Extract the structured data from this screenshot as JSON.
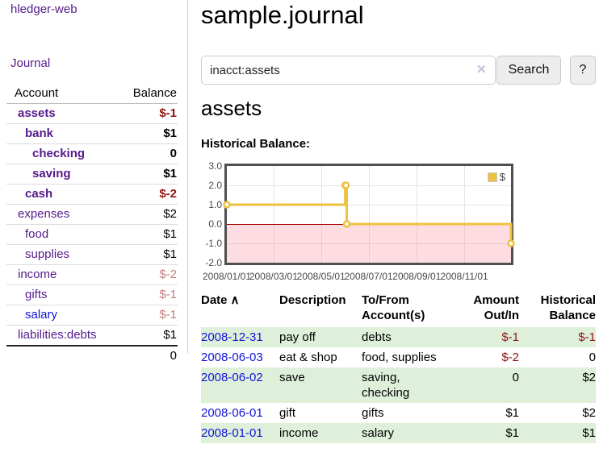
{
  "app": {
    "title": "hledger-web"
  },
  "colors": {
    "accent_purple": "#551a8b",
    "link_blue": "#1414d6",
    "negative_red": "#8f1414",
    "negative_muted": "#c27f7f",
    "row_green": "#def0da",
    "chart_line": "#edc240",
    "zero_line": "#a40000"
  },
  "sidebar": {
    "journal_link": "Journal",
    "accounts_table": {
      "headers": [
        "Account",
        "Balance"
      ],
      "rows": [
        {
          "account": "assets",
          "balance": "$-1",
          "depth": 1,
          "bold": true,
          "balance_color": "negative"
        },
        {
          "account": "bank",
          "balance": "$1",
          "depth": 2,
          "bold": true,
          "balance_color": "normal"
        },
        {
          "account": "checking",
          "balance": "0",
          "depth": 3,
          "bold": true,
          "balance_color": "normal"
        },
        {
          "account": "saving",
          "balance": "$1",
          "depth": 3,
          "bold": true,
          "balance_color": "normal"
        },
        {
          "account": "cash",
          "balance": "$-2",
          "depth": 2,
          "bold": true,
          "balance_color": "negative"
        },
        {
          "account": "expenses",
          "balance": "$2",
          "depth": 1,
          "bold": false,
          "balance_color": "normal"
        },
        {
          "account": "food",
          "balance": "$1",
          "depth": 2,
          "bold": false,
          "balance_color": "normal"
        },
        {
          "account": "supplies",
          "balance": "$1",
          "depth": 2,
          "bold": false,
          "balance_color": "normal"
        },
        {
          "account": "income",
          "balance": "$-2",
          "depth": 1,
          "bold": false,
          "balance_color": "negative-muted"
        },
        {
          "account": "gifts",
          "balance": "$-1",
          "depth": 2,
          "bold": false,
          "balance_color": "negative-muted"
        },
        {
          "account": "salary",
          "balance": "$-1",
          "depth": 2,
          "bold": false,
          "balance_color": "negative-muted",
          "link_color": "blue"
        },
        {
          "account": "liabilities:debts",
          "balance": "$1",
          "depth": 1,
          "bold": false,
          "balance_color": "normal"
        }
      ],
      "total": "0"
    }
  },
  "main": {
    "title": "sample.journal",
    "search": {
      "value": "inacct:assets",
      "clear_icon": "✕",
      "button_label": "Search",
      "help_label": "?"
    },
    "account_heading": "assets",
    "chart_label": "Historical Balance:"
  },
  "chart_data": {
    "type": "line",
    "style": "step",
    "title": "Historical Balance",
    "series": [
      {
        "name": "$",
        "color": "#edc240",
        "points": [
          [
            "2008-01-01",
            1
          ],
          [
            "2008-06-01",
            2
          ],
          [
            "2008-06-02",
            2
          ],
          [
            "2008-06-03",
            0
          ],
          [
            "2008-12-31",
            -1
          ]
        ]
      }
    ],
    "xlim": [
      "2008-01-01",
      "2008-12-31"
    ],
    "ylim": [
      -2,
      3
    ],
    "xticks": [
      "2008/01/01",
      "2008/03/01",
      "2008/05/01",
      "2008/07/01",
      "2008/09/01",
      "2008/11/01"
    ],
    "yticks": [
      "3.0",
      "2.0",
      "1.0",
      "0.0",
      "-1.0",
      "-2.0"
    ],
    "legend_label": "$",
    "legend_position": "top-right",
    "grid": true,
    "negative_region_shaded": true
  },
  "transactions": {
    "headers": {
      "date": "Date",
      "description": "Description",
      "accounts": "To/From Account(s)",
      "amount": "Amount Out/In",
      "balance": "Historical Balance"
    },
    "sort_icon": "∧",
    "rows": [
      {
        "date": "2008-12-31",
        "description": "pay off",
        "accounts": "debts",
        "amount": "$-1",
        "balance": "$-1",
        "amount_neg": true,
        "balance_neg": true,
        "shaded": true
      },
      {
        "date": "2008-06-03",
        "description": "eat & shop",
        "accounts": "food, supplies",
        "amount": "$-2",
        "balance": "0",
        "amount_neg": true,
        "balance_neg": false,
        "shaded": false
      },
      {
        "date": "2008-06-02",
        "description": "save",
        "accounts": "saving, checking",
        "amount": "0",
        "balance": "$2",
        "amount_neg": false,
        "balance_neg": false,
        "shaded": true
      },
      {
        "date": "2008-06-01",
        "description": "gift",
        "accounts": "gifts",
        "amount": "$1",
        "balance": "$2",
        "amount_neg": false,
        "balance_neg": false,
        "shaded": false
      },
      {
        "date": "2008-01-01",
        "description": "income",
        "accounts": "salary",
        "amount": "$1",
        "balance": "$1",
        "amount_neg": false,
        "balance_neg": false,
        "shaded": true
      }
    ]
  }
}
